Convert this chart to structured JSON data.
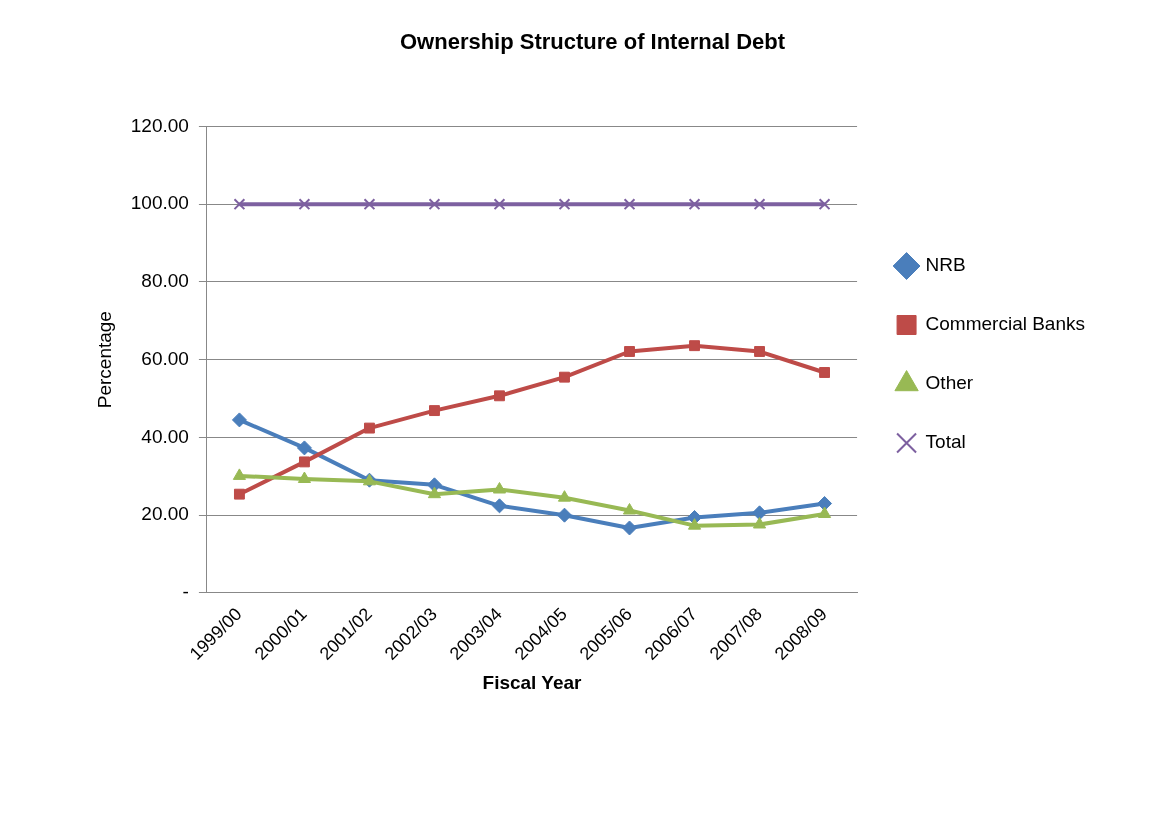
{
  "chart_data": {
    "type": "line",
    "title": "Ownership Structure of Internal Debt",
    "xlabel": "Fiscal Year",
    "ylabel": "Percentage",
    "categories": [
      "1999/00",
      "2000/01",
      "2001/02",
      "2002/03",
      "2003/04",
      "2004/05",
      "2005/06",
      "2006/07",
      "2007/08",
      "2008/09"
    ],
    "ylim": [
      0,
      120
    ],
    "yticks": [
      {
        "value": 0,
        "label": "-"
      },
      {
        "value": 20,
        "label": "20.00"
      },
      {
        "value": 40,
        "label": "40.00"
      },
      {
        "value": 60,
        "label": "60.00"
      },
      {
        "value": 80,
        "label": "80.00"
      },
      {
        "value": 100,
        "label": "100.00"
      },
      {
        "value": 120,
        "label": "120.00"
      }
    ],
    "grid": "y",
    "legend": "right",
    "series": [
      {
        "name": "NRB",
        "color": "#4a7ebb",
        "marker": "diamond",
        "values": [
          44.5,
          37.3,
          29,
          27.8,
          22.4,
          20,
          16.7,
          19.4,
          20.6,
          23
        ]
      },
      {
        "name": "Commercial Banks",
        "color": "#be4b48",
        "marker": "square",
        "values": [
          25.4,
          33.7,
          42.4,
          46.9,
          50.7,
          55.5,
          62.1,
          63.6,
          62.1,
          56.7
        ]
      },
      {
        "name": "Other",
        "color": "#98b954",
        "marker": "triangle",
        "values": [
          30.1,
          29.3,
          28.7,
          25.4,
          26.6,
          24.5,
          21.2,
          17.3,
          17.6,
          20.3
        ]
      },
      {
        "name": "Total",
        "color": "#7d60a0",
        "marker": "cross",
        "values": [
          100,
          100,
          100,
          100,
          100,
          100,
          100,
          100,
          100,
          100
        ]
      }
    ]
  }
}
